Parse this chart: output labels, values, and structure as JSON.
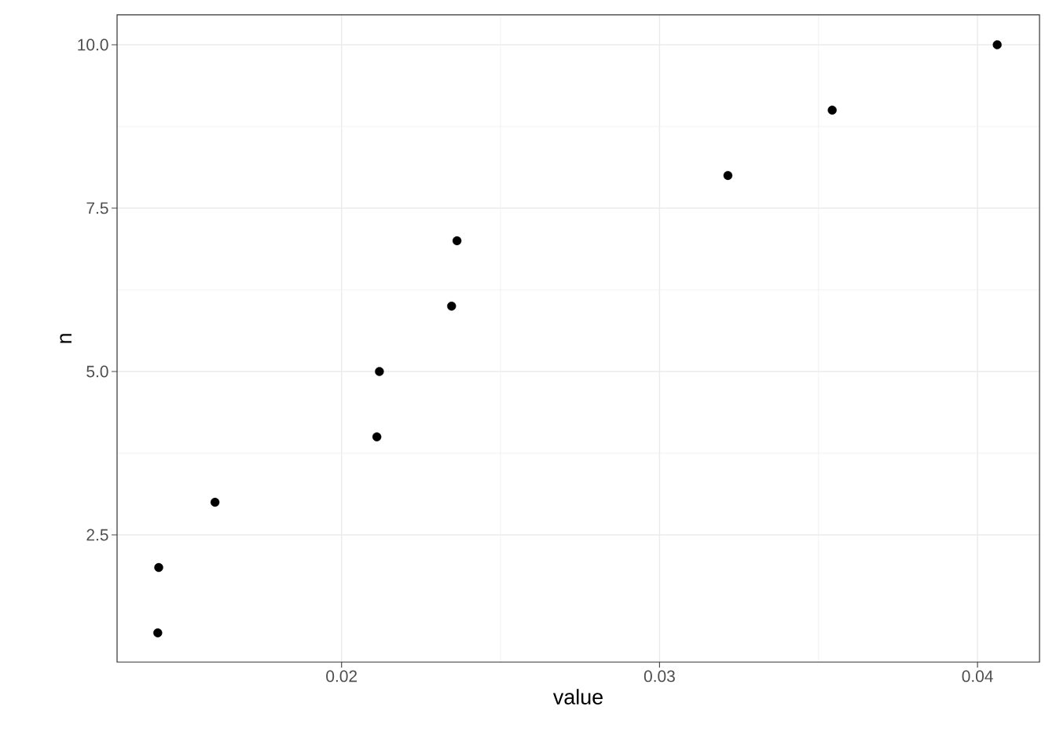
{
  "chart_data": {
    "type": "scatter",
    "xlabel": "value",
    "ylabel": "n",
    "x": [
      0.01422,
      0.01425,
      0.01602,
      0.02111,
      0.02119,
      0.02346,
      0.02363,
      0.03215,
      0.03543,
      0.04062
    ],
    "values": [
      1,
      2,
      3,
      4,
      5,
      6,
      7,
      8,
      9,
      10
    ],
    "color": "#000000",
    "xlim": [
      0.01294,
      0.04195
    ],
    "ylim": [
      0.553,
      10.457
    ],
    "xticks": [
      {
        "value": 0.02,
        "label": "0.02"
      },
      {
        "value": 0.03,
        "label": "0.03"
      },
      {
        "value": 0.04,
        "label": "0.04"
      }
    ],
    "yticks": [
      {
        "value": 2.5,
        "label": "2.5"
      },
      {
        "value": 5,
        "label": "5.0"
      },
      {
        "value": 7.5,
        "label": "7.5"
      },
      {
        "value": 10,
        "label": "10.0"
      }
    ],
    "grid": true
  }
}
